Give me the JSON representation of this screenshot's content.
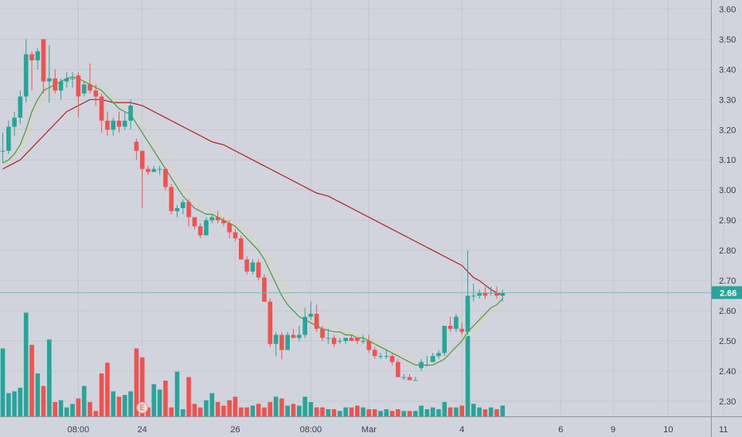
{
  "chart_data": {
    "type": "candlestick",
    "title": "",
    "xlabel": "",
    "ylabel": "",
    "ylim": [
      2.25,
      3.63
    ],
    "y_ticks": [
      "3.60",
      "3.50",
      "3.40",
      "3.30",
      "3.20",
      "3.10",
      "3.00",
      "2.90",
      "2.80",
      "2.70",
      "2.60",
      "2.50",
      "2.40",
      "2.30"
    ],
    "x_ticks": [
      {
        "label": "08:00",
        "i": 13
      },
      {
        "label": "24",
        "i": 24
      },
      {
        "label": "26",
        "i": 40
      },
      {
        "label": "08:00",
        "i": 53
      },
      {
        "label": "Mar",
        "i": 63
      },
      {
        "label": "4",
        "i": 79
      },
      {
        "label": "6",
        "i": 96
      },
      {
        "label": "9",
        "i": 105
      },
      {
        "label": "10",
        "i": 114.5
      },
      {
        "label": "11",
        "i": 124
      }
    ],
    "last_price": "2.66",
    "last_price_value": 2.66,
    "earnings_marker": {
      "label": "E",
      "i": 24
    },
    "candles": [
      [
        3.13,
        3.19,
        3.09,
        3.13
      ],
      [
        3.13,
        3.23,
        3.12,
        3.21
      ],
      [
        3.21,
        3.26,
        3.18,
        3.24
      ],
      [
        3.24,
        3.33,
        3.22,
        3.31
      ],
      [
        3.31,
        3.5,
        3.29,
        3.45
      ],
      [
        3.45,
        3.46,
        3.33,
        3.43
      ],
      [
        3.43,
        3.47,
        3.4,
        3.46
      ],
      [
        3.5,
        3.5,
        3.32,
        3.36
      ],
      [
        3.36,
        3.48,
        3.29,
        3.37
      ],
      [
        3.37,
        3.4,
        3.32,
        3.33
      ],
      [
        3.33,
        3.37,
        3.3,
        3.36
      ],
      [
        3.36,
        3.39,
        3.34,
        3.37
      ],
      [
        3.37,
        3.39,
        3.34,
        3.37
      ],
      [
        3.38,
        3.39,
        3.24,
        3.31
      ],
      [
        3.32,
        3.36,
        3.31,
        3.35
      ],
      [
        3.35,
        3.42,
        3.32,
        3.33
      ],
      [
        3.33,
        3.35,
        3.28,
        3.31
      ],
      [
        3.31,
        3.32,
        3.19,
        3.23
      ],
      [
        3.23,
        3.26,
        3.18,
        3.2
      ],
      [
        3.2,
        3.24,
        3.18,
        3.23
      ],
      [
        3.23,
        3.26,
        3.19,
        3.21
      ],
      [
        3.21,
        3.26,
        3.2,
        3.23
      ],
      [
        3.23,
        3.3,
        3.2,
        3.28
      ],
      [
        3.16,
        3.17,
        3.1,
        3.13
      ],
      [
        3.13,
        3.13,
        2.94,
        3.07
      ],
      [
        3.07,
        3.08,
        3.05,
        3.06
      ],
      [
        3.06,
        3.08,
        3.06,
        3.07
      ],
      [
        3.07,
        3.08,
        3.05,
        3.07
      ],
      [
        3.07,
        3.07,
        3.0,
        3.01
      ],
      [
        3.01,
        3.02,
        2.92,
        2.93
      ],
      [
        2.93,
        2.95,
        2.91,
        2.94
      ],
      [
        2.94,
        2.97,
        2.92,
        2.96
      ],
      [
        2.96,
        2.97,
        2.88,
        2.91
      ],
      [
        2.91,
        2.91,
        2.87,
        2.88
      ],
      [
        2.88,
        2.89,
        2.84,
        2.85
      ],
      [
        2.85,
        2.91,
        2.85,
        2.9
      ],
      [
        2.9,
        2.92,
        2.89,
        2.91
      ],
      [
        2.91,
        2.93,
        2.89,
        2.9
      ],
      [
        2.9,
        2.91,
        2.88,
        2.89
      ],
      [
        2.89,
        2.9,
        2.84,
        2.86
      ],
      [
        2.86,
        2.87,
        2.83,
        2.84
      ],
      [
        2.84,
        2.85,
        2.77,
        2.77
      ],
      [
        2.77,
        2.78,
        2.72,
        2.73
      ],
      [
        2.73,
        2.77,
        2.72,
        2.76
      ],
      [
        2.76,
        2.77,
        2.7,
        2.71
      ],
      [
        2.71,
        2.72,
        2.63,
        2.63
      ],
      [
        2.63,
        2.64,
        2.48,
        2.49
      ],
      [
        2.49,
        2.53,
        2.45,
        2.52
      ],
      [
        2.52,
        2.53,
        2.44,
        2.47
      ],
      [
        2.47,
        2.53,
        2.47,
        2.52
      ],
      [
        2.52,
        2.54,
        2.51,
        2.51
      ],
      [
        2.51,
        2.55,
        2.5,
        2.52
      ],
      [
        2.52,
        2.61,
        2.51,
        2.58
      ],
      [
        2.58,
        2.63,
        2.57,
        2.59
      ],
      [
        2.59,
        2.62,
        2.53,
        2.54
      ],
      [
        2.54,
        2.55,
        2.5,
        2.51
      ],
      [
        2.51,
        2.54,
        2.49,
        2.51
      ],
      [
        2.51,
        2.52,
        2.48,
        2.49
      ],
      [
        2.5,
        2.51,
        2.49,
        2.5
      ],
      [
        2.5,
        2.51,
        2.49,
        2.51
      ],
      [
        2.51,
        2.52,
        2.5,
        2.5
      ],
      [
        2.51,
        2.51,
        2.49,
        2.5
      ],
      [
        2.5,
        2.52,
        2.49,
        2.5
      ],
      [
        2.5,
        2.52,
        2.46,
        2.47
      ],
      [
        2.47,
        2.48,
        2.44,
        2.45
      ],
      [
        2.45,
        2.46,
        2.44,
        2.45
      ],
      [
        2.45,
        2.47,
        2.44,
        2.45
      ],
      [
        2.45,
        2.46,
        2.42,
        2.43
      ],
      [
        2.43,
        2.44,
        2.38,
        2.38
      ],
      [
        2.38,
        2.39,
        2.37,
        2.38
      ],
      [
        2.38,
        2.39,
        2.37,
        2.37
      ],
      [
        2.37,
        2.38,
        2.37,
        2.37
      ],
      [
        2.41,
        2.44,
        2.4,
        2.43
      ],
      [
        2.42,
        2.45,
        2.42,
        2.42
      ],
      [
        2.43,
        2.46,
        2.43,
        2.45
      ],
      [
        2.45,
        2.47,
        2.44,
        2.46
      ],
      [
        2.46,
        2.55,
        2.45,
        2.55
      ],
      [
        2.55,
        2.58,
        2.53,
        2.54
      ],
      [
        2.54,
        2.59,
        2.53,
        2.58
      ],
      [
        2.54,
        2.56,
        2.52,
        2.53
      ],
      [
        2.53,
        2.8,
        2.52,
        2.65
      ],
      [
        2.65,
        2.69,
        2.63,
        2.65
      ],
      [
        2.65,
        2.67,
        2.64,
        2.66
      ],
      [
        2.66,
        2.68,
        2.64,
        2.65
      ],
      [
        2.66,
        2.68,
        2.65,
        2.66
      ],
      [
        2.66,
        2.68,
        2.64,
        2.65
      ],
      [
        2.65,
        2.67,
        2.63,
        2.66
      ]
    ],
    "volume": [
      38,
      13,
      14,
      16,
      58,
      40,
      24,
      17,
      43,
      8,
      9,
      5,
      7,
      10,
      17,
      8,
      3,
      24,
      30,
      14,
      11,
      12,
      14,
      38,
      33,
      5,
      18,
      15,
      20,
      5,
      25,
      4,
      22,
      7,
      5,
      9,
      13,
      8,
      6,
      9,
      11,
      5,
      5,
      6,
      7,
      5,
      8,
      11,
      10,
      6,
      7,
      6,
      11,
      8,
      5,
      5,
      4,
      4,
      3,
      5,
      5,
      6,
      5,
      4,
      4,
      3,
      4,
      3,
      4,
      3,
      3,
      3,
      6,
      4,
      5,
      4,
      8,
      5,
      5,
      6,
      45,
      7,
      5,
      4,
      5,
      4,
      6
    ],
    "ma_fast": [
      3.09,
      3.1,
      3.12,
      3.15,
      3.2,
      3.26,
      3.3,
      3.33,
      3.34,
      3.35,
      3.36,
      3.37,
      3.375,
      3.37,
      3.36,
      3.35,
      3.34,
      3.33,
      3.31,
      3.29,
      3.27,
      3.26,
      3.25,
      3.22,
      3.19,
      3.16,
      3.13,
      3.1,
      3.07,
      3.04,
      3.01,
      2.98,
      2.96,
      2.94,
      2.93,
      2.92,
      2.92,
      2.91,
      2.9,
      2.89,
      2.88,
      2.86,
      2.84,
      2.82,
      2.8,
      2.77,
      2.73,
      2.69,
      2.65,
      2.62,
      2.6,
      2.58,
      2.57,
      2.56,
      2.55,
      2.54,
      2.535,
      2.53,
      2.53,
      2.52,
      2.52,
      2.51,
      2.51,
      2.5,
      2.49,
      2.48,
      2.47,
      2.46,
      2.45,
      2.44,
      2.43,
      2.42,
      2.42,
      2.42,
      2.42,
      2.43,
      2.44,
      2.46,
      2.48,
      2.5,
      2.53,
      2.55,
      2.57,
      2.59,
      2.61,
      2.62,
      2.64
    ],
    "ma_mid": [
      3.09,
      3.09,
      3.11,
      3.13,
      3.17,
      3.22,
      3.27,
      3.3,
      3.32,
      3.34,
      3.35,
      3.36,
      3.37,
      3.37,
      3.36,
      3.36,
      3.35,
      3.34,
      3.33,
      3.31,
      3.29,
      3.28,
      3.27,
      3.25,
      3.22,
      3.2,
      3.17,
      3.14,
      3.11,
      3.08,
      3.05,
      3.02,
      2.99,
      2.97,
      2.95,
      2.94,
      2.93,
      2.92,
      2.91,
      2.9,
      2.89,
      2.88,
      2.86,
      2.84,
      2.82,
      2.8,
      2.77,
      2.74,
      2.7,
      2.67,
      2.64,
      2.62,
      2.6,
      2.59,
      2.58,
      2.57,
      2.56,
      2.55,
      2.54,
      2.53,
      2.52,
      2.52,
      2.51,
      2.51,
      2.5,
      2.49,
      2.48,
      2.47,
      2.46,
      2.45,
      2.44,
      2.43,
      2.43,
      2.43,
      2.43,
      2.43,
      2.44,
      2.46,
      2.48,
      2.5,
      2.52,
      2.54,
      2.56,
      2.58,
      2.59,
      2.6,
      2.61
    ],
    "ma_slow": [
      3.07,
      3.08,
      3.09,
      3.1,
      3.12,
      3.14,
      3.16,
      3.18,
      3.2,
      3.22,
      3.24,
      3.26,
      3.27,
      3.28,
      3.29,
      3.3,
      3.3,
      3.3,
      3.295,
      3.29,
      3.29,
      3.29,
      3.29,
      3.285,
      3.28,
      3.27,
      3.26,
      3.25,
      3.24,
      3.23,
      3.22,
      3.21,
      3.2,
      3.19,
      3.18,
      3.17,
      3.16,
      3.155,
      3.15,
      3.14,
      3.13,
      3.12,
      3.11,
      3.1,
      3.09,
      3.08,
      3.07,
      3.06,
      3.05,
      3.04,
      3.03,
      3.02,
      3.01,
      3.0,
      2.99,
      2.985,
      2.98,
      2.97,
      2.96,
      2.95,
      2.94,
      2.93,
      2.92,
      2.91,
      2.9,
      2.89,
      2.88,
      2.87,
      2.86,
      2.85,
      2.84,
      2.83,
      2.82,
      2.81,
      2.8,
      2.79,
      2.78,
      2.77,
      2.76,
      2.75,
      2.73,
      2.71,
      2.7,
      2.685,
      2.67,
      2.66,
      2.65
    ],
    "colors": {
      "background": "#d1d4dc",
      "grid": "#c4c7cf",
      "up": "#26a69a",
      "down": "#ef5350",
      "ma_fast": "#4a9a3a",
      "ma_mid": "#d8d6a8",
      "ma_slow": "#b22222",
      "price_line": "#7fb8b5",
      "text": "#3a3e4a",
      "axis_line": "#9598a1"
    }
  }
}
